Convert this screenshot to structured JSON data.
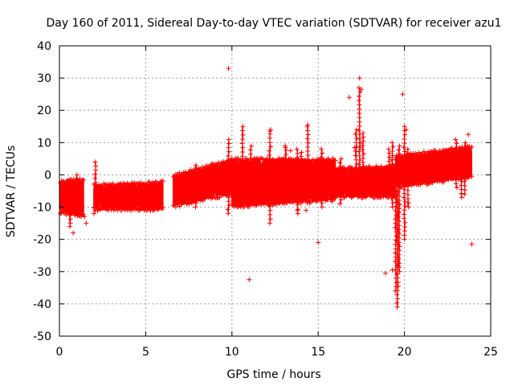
{
  "chart_data": {
    "type": "scatter",
    "title": "Day 160 of 2011, Sidereal Day-to-day VTEC variation (SDTVAR) for receiver azu1",
    "xlabel": "GPS time / hours",
    "ylabel": "SDTVAR / TECUs",
    "xlim": [
      0,
      25
    ],
    "ylim": [
      -50,
      40
    ],
    "xticks": [
      0,
      5,
      10,
      15,
      20,
      25
    ],
    "yticks": [
      -50,
      -40,
      -30,
      -20,
      -10,
      0,
      10,
      20,
      30,
      40
    ],
    "grid": true,
    "marker": "+",
    "color": "#ff0000",
    "series": [
      {
        "name": "SDTVAR",
        "band_segments": [
          {
            "x0": 0.05,
            "x1": 1.4,
            "lo": -11,
            "hi": -3,
            "lo1": -12,
            "hi1": -2
          },
          {
            "x0": 2.0,
            "x1": 6.0,
            "lo": -10,
            "hi": -4,
            "lo1": -10,
            "hi1": -3
          },
          {
            "x0": 6.6,
            "x1": 10.0,
            "lo": -9,
            "hi": -1,
            "lo1": -5,
            "hi1": 4
          },
          {
            "x0": 10.0,
            "x1": 16.0,
            "lo": -9,
            "hi": 4,
            "lo1": -7,
            "hi1": 4
          },
          {
            "x0": 16.0,
            "x1": 19.5,
            "lo": -6,
            "hi": 1,
            "lo1": -6,
            "hi1": 2
          },
          {
            "x0": 19.5,
            "x1": 23.9,
            "lo": -3,
            "hi": 5,
            "lo1": 0,
            "hi1": 8
          }
        ],
        "spikes": [
          {
            "x": 0.4,
            "lo": -11,
            "hi": -2
          },
          {
            "x": 0.6,
            "lo": -15,
            "hi": -5
          },
          {
            "x": 1.0,
            "lo": -12,
            "hi": 0
          },
          {
            "x": 2.1,
            "lo": -10,
            "hi": 4
          },
          {
            "x": 7.9,
            "lo": -10,
            "hi": 3
          },
          {
            "x": 9.8,
            "lo": -12,
            "hi": 11
          },
          {
            "x": 10.6,
            "lo": -10,
            "hi": 15
          },
          {
            "x": 11.1,
            "lo": -9,
            "hi": 9
          },
          {
            "x": 12.2,
            "lo": -15,
            "hi": 14
          },
          {
            "x": 13.1,
            "lo": -7,
            "hi": 9
          },
          {
            "x": 13.8,
            "lo": -12,
            "hi": 8
          },
          {
            "x": 14.0,
            "lo": -8,
            "hi": 7
          },
          {
            "x": 14.4,
            "lo": -8,
            "hi": 15
          },
          {
            "x": 15.2,
            "lo": -10,
            "hi": 8
          },
          {
            "x": 16.3,
            "lo": -9,
            "hi": 5
          },
          {
            "x": 17.2,
            "lo": -6,
            "hi": 14
          },
          {
            "x": 17.4,
            "lo": -6,
            "hi": 27
          },
          {
            "x": 17.6,
            "lo": -4,
            "hi": 13
          },
          {
            "x": 19.1,
            "lo": -6,
            "hi": 8
          },
          {
            "x": 19.3,
            "lo": -10,
            "hi": 10
          },
          {
            "x": 19.5,
            "lo": -36,
            "hi": 6
          },
          {
            "x": 19.6,
            "lo": -41,
            "hi": 4
          },
          {
            "x": 19.7,
            "lo": -30,
            "hi": 9
          },
          {
            "x": 20.0,
            "lo": -20,
            "hi": 15
          },
          {
            "x": 20.2,
            "lo": -10,
            "hi": 8
          },
          {
            "x": 23.0,
            "lo": -4,
            "hi": 11
          },
          {
            "x": 23.3,
            "lo": -7,
            "hi": 8
          },
          {
            "x": 23.5,
            "lo": -6,
            "hi": 10
          }
        ],
        "outliers": [
          {
            "x": 0.6,
            "y": -16
          },
          {
            "x": 0.8,
            "y": -18
          },
          {
            "x": 1.45,
            "y": -13
          },
          {
            "x": 1.55,
            "y": -15
          },
          {
            "x": 2.0,
            "y": -12
          },
          {
            "x": 9.8,
            "y": 33
          },
          {
            "x": 11.0,
            "y": -32.5
          },
          {
            "x": 12.2,
            "y": 13.5
          },
          {
            "x": 13.1,
            "y": 8.5
          },
          {
            "x": 13.4,
            "y": 7.5
          },
          {
            "x": 13.8,
            "y": -11
          },
          {
            "x": 14.3,
            "y": -11
          },
          {
            "x": 14.4,
            "y": 15.5
          },
          {
            "x": 15.0,
            "y": -21
          },
          {
            "x": 16.8,
            "y": 24
          },
          {
            "x": 17.1,
            "y": 8.5
          },
          {
            "x": 17.4,
            "y": 30
          },
          {
            "x": 17.5,
            "y": 26.5
          },
          {
            "x": 18.9,
            "y": -30.5
          },
          {
            "x": 19.3,
            "y": -29.5
          },
          {
            "x": 19.9,
            "y": 25
          },
          {
            "x": 20.1,
            "y": 14
          },
          {
            "x": 23.7,
            "y": 12.5
          },
          {
            "x": 23.9,
            "y": -21.5
          }
        ]
      }
    ]
  }
}
